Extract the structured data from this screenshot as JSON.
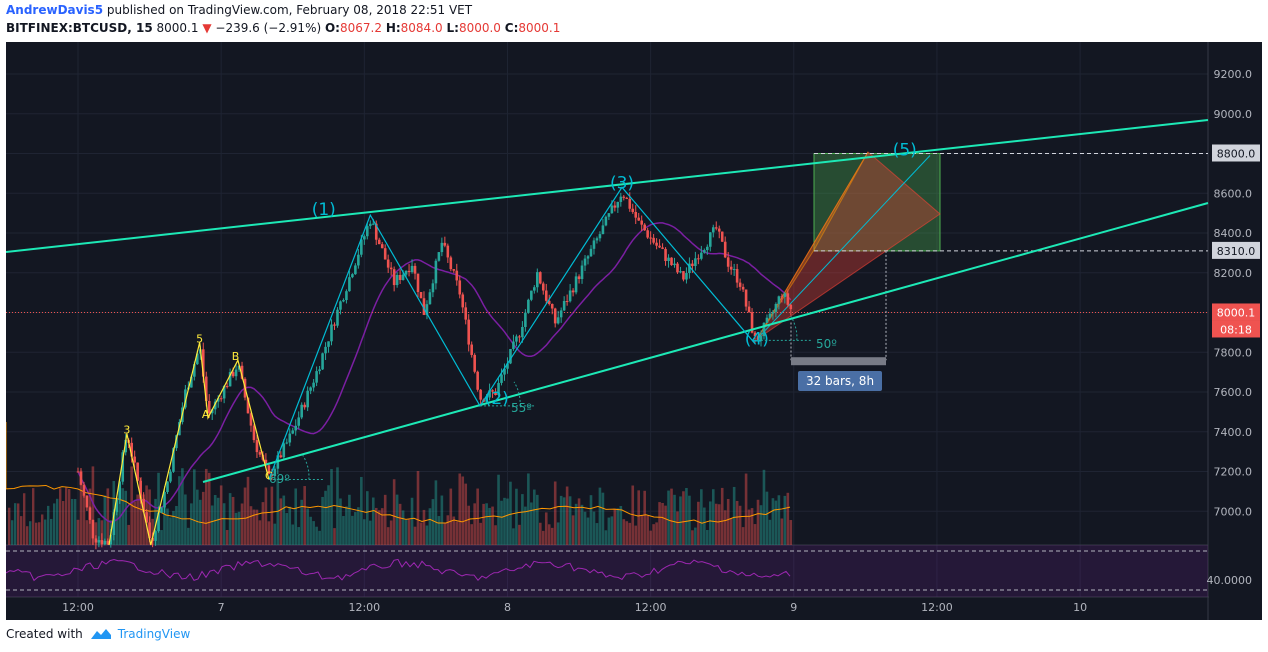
{
  "header": {
    "author": "AndrewDavis5",
    "published_text": "published on TradingView.com, February 08, 2018 22:51 VET",
    "symbol": "BITFINEX:BTCUSD, 15",
    "last": "8000.1",
    "change_arrow": "▼",
    "change": "−239.6 (−2.91%)",
    "o_label": "O:",
    "o_val": "8067.2",
    "h_label": "H:",
    "h_val": "8084.0",
    "l_label": "L:",
    "l_val": "8000.0",
    "c_label": "C:",
    "c_val": "8000.1"
  },
  "footer": {
    "created_with": "Created with",
    "brand": "TradingView"
  },
  "colors": {
    "background": "#131722",
    "up": "#26a69a",
    "down": "#ef5350",
    "channel": "#1de9b6",
    "wave": "#00bcd4",
    "abc": "#ffeb3b",
    "ma": "#7b1fa2",
    "rsi": "#9c27b0"
  },
  "chart_data": {
    "type": "candlestick",
    "yticks": [
      "9200.0",
      "9000.0",
      "8800.0",
      "8600.0",
      "8400.0",
      "8200.0",
      "8000.0",
      "7800.0",
      "7600.0",
      "7400.0",
      "7200.0",
      "7000.0"
    ],
    "rsi_tick": "40.0000",
    "xticks": [
      "12:00",
      "7",
      "12:00",
      "8",
      "12:00",
      "9",
      "12:00",
      "10"
    ],
    "price_tags": [
      {
        "label": "8800.0",
        "value": 8800
      },
      {
        "label": "8310.0",
        "value": 8310
      },
      {
        "label": "8000.1",
        "value": 8000.1,
        "highlight": true
      }
    ],
    "countdown": "08:18",
    "wave_labels": [
      {
        "label": "(1)",
        "t": 20.6,
        "price": 8490
      },
      {
        "label": "(2)",
        "t": 35.1,
        "price": 7540
      },
      {
        "label": "(3)",
        "t": 45.6,
        "price": 8625
      },
      {
        "label": "(4)",
        "t": 56.9,
        "price": 7840
      },
      {
        "label": "(5)",
        "t": 69.3,
        "price": 8790
      }
    ],
    "minor_labels": [
      {
        "label": "3",
        "t": 4.1,
        "price": 7390
      },
      {
        "label": "5",
        "t": 10.2,
        "price": 7850
      },
      {
        "label": "A",
        "t": 10.7,
        "price": 7470
      },
      {
        "label": "B",
        "t": 13.2,
        "price": 7760
      },
      {
        "label": "C",
        "t": 16.0,
        "price": 7160
      }
    ],
    "angle_labels": [
      "69º",
      "55º",
      "50º"
    ],
    "measure_label": "32 bars, 8h",
    "series": [
      {
        "name": "wave",
        "points": [
          [
            16,
            7160
          ],
          [
            24.5,
            8490
          ],
          [
            33.7,
            7530
          ],
          [
            45.6,
            8630
          ],
          [
            56.8,
            7840
          ],
          [
            69.3,
            8800
          ]
        ]
      },
      {
        "name": "abc",
        "points": [
          [
            2.6,
            6830
          ],
          [
            4.1,
            7390
          ],
          [
            6.1,
            6830
          ],
          [
            10.2,
            7850
          ],
          [
            10.9,
            7470
          ],
          [
            13.4,
            7760
          ],
          [
            16,
            7160
          ]
        ]
      }
    ]
  }
}
